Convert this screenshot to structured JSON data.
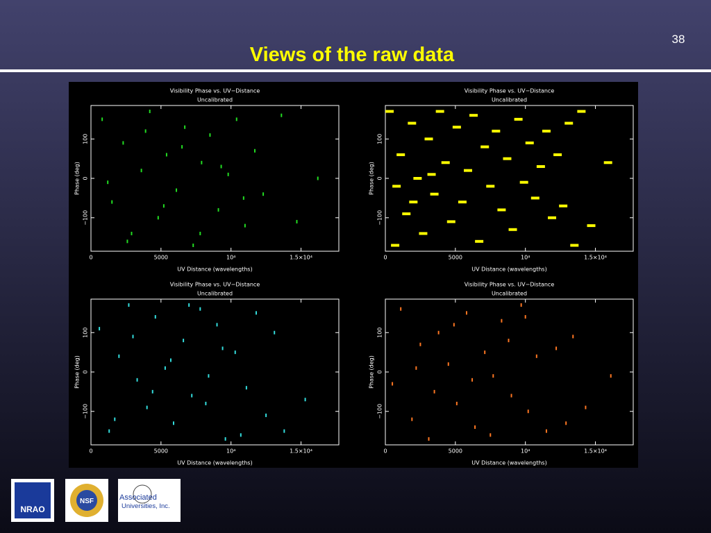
{
  "slide_number": "38",
  "title": "Views of the raw data",
  "logos": [
    "NRAO",
    "NSF",
    "Associated",
    "Universities, Inc."
  ],
  "chart_data": [
    {
      "type": "scatter",
      "title": "Visibility Phase vs. UV−Distance",
      "subtitle": "Uncalibrated",
      "xlabel": "UV Distance (wavelengths)",
      "ylabel": "Phase (deg)",
      "color": "#22dd22",
      "xlim": [
        0,
        17700
      ],
      "ylim": [
        -185,
        185
      ],
      "xticks": [
        0,
        5000,
        {
          "value": 10000,
          "label": "10⁴"
        },
        {
          "value": 15000,
          "label": "1.5×10⁴"
        }
      ],
      "yticks": [
        {
          "value": -100,
          "label": "−100"
        },
        0,
        100
      ],
      "x": [
        800,
        1500,
        2300,
        2900,
        3600,
        4200,
        4800,
        5400,
        6100,
        6700,
        7300,
        7900,
        8500,
        9100,
        9800,
        10400,
        11000,
        11700,
        12300,
        13600,
        14700,
        1200,
        2600,
        3900,
        5200,
        6500,
        7800,
        9300,
        10900,
        16200
      ],
      "y": [
        150,
        -60,
        90,
        -140,
        20,
        170,
        -100,
        60,
        -30,
        130,
        -170,
        40,
        110,
        -80,
        10,
        150,
        -120,
        70,
        -40,
        160,
        -110,
        -10,
        -160,
        120,
        -70,
        80,
        -140,
        30,
        -50,
        0
      ]
    },
    {
      "type": "scatter",
      "title": "Visibility Phase vs. UV−Distance",
      "subtitle": "Uncalibrated",
      "xlabel": "UV Distance (wavelengths)",
      "ylabel": "Phase (deg)",
      "color": "#ffff00",
      "xlim": [
        0,
        17700
      ],
      "ylim": [
        -185,
        185
      ],
      "xticks": [
        0,
        5000,
        {
          "value": 10000,
          "label": "10⁴"
        },
        {
          "value": 15000,
          "label": "1.5×10⁴"
        }
      ],
      "yticks": [
        {
          "value": -100,
          "label": "−100"
        },
        0,
        100
      ],
      "x": [
        300,
        700,
        1100,
        1500,
        1900,
        2300,
        2700,
        3100,
        3500,
        3900,
        4300,
        4700,
        5100,
        5500,
        5900,
        6300,
        6700,
        7100,
        7500,
        7900,
        8300,
        8700,
        9100,
        9500,
        9900,
        10300,
        10700,
        11100,
        11500,
        11900,
        12300,
        12700,
        13100,
        13500,
        14000,
        14700,
        15900,
        800,
        2000,
        3300
      ],
      "y": [
        170,
        -170,
        60,
        -90,
        140,
        0,
        -140,
        100,
        -40,
        170,
        40,
        -110,
        130,
        -60,
        20,
        160,
        -160,
        80,
        -20,
        120,
        -80,
        50,
        -130,
        150,
        -10,
        90,
        -50,
        30,
        120,
        -100,
        60,
        -70,
        140,
        -170,
        170,
        -120,
        40,
        -20,
        -60,
        10
      ]
    },
    {
      "type": "scatter",
      "title": "Visibility Phase vs. UV−Distance",
      "subtitle": "Uncalibrated",
      "xlabel": "UV Distance (wavelengths)",
      "ylabel": "Phase (deg)",
      "color": "#33dddd",
      "xlim": [
        0,
        17700
      ],
      "ylim": [
        -185,
        185
      ],
      "xticks": [
        0,
        5000,
        {
          "value": 10000,
          "label": "10⁴"
        },
        {
          "value": 15000,
          "label": "1.5×10⁴"
        }
      ],
      "yticks": [
        {
          "value": -100,
          "label": "−100"
        },
        0,
        100
      ],
      "x": [
        600,
        1300,
        2000,
        2700,
        3300,
        4000,
        4600,
        5300,
        5900,
        6600,
        7200,
        7800,
        8400,
        9000,
        9600,
        10300,
        11100,
        11800,
        12500,
        13800,
        15300,
        1700,
        3000,
        4400,
        5700,
        7000,
        8200,
        9400,
        10700,
        13100
      ],
      "y": [
        110,
        -150,
        40,
        170,
        -20,
        -90,
        140,
        10,
        -130,
        80,
        -60,
        160,
        -10,
        120,
        -170,
        50,
        -40,
        150,
        -110,
        -150,
        -70,
        -120,
        90,
        -50,
        30,
        170,
        -80,
        60,
        -160,
        100
      ]
    },
    {
      "type": "scatter",
      "title": "Visibility Phase vs. UV−Distance",
      "subtitle": "Uncalibrated",
      "xlabel": "UV Distance (wavelengths)",
      "ylabel": "Phase (deg)",
      "color": "#ff7722",
      "xlim": [
        0,
        17700
      ],
      "ylim": [
        -185,
        185
      ],
      "xticks": [
        0,
        5000,
        {
          "value": 10000,
          "label": "10⁴"
        },
        {
          "value": 15000,
          "label": "1.5×10⁴"
        }
      ],
      "yticks": [
        {
          "value": -100,
          "label": "−100"
        },
        0,
        100
      ],
      "x": [
        500,
        1100,
        1900,
        2500,
        3100,
        3800,
        4500,
        5100,
        5800,
        6400,
        7100,
        7700,
        8300,
        9000,
        9700,
        10200,
        10800,
        11500,
        12200,
        13400,
        14300,
        16100,
        2200,
        3500,
        4900,
        6200,
        7500,
        8800,
        10000,
        12900
      ],
      "y": [
        -30,
        160,
        -120,
        70,
        -170,
        100,
        20,
        -80,
        150,
        -140,
        50,
        -10,
        130,
        -60,
        170,
        -100,
        40,
        -150,
        60,
        90,
        -90,
        -10,
        10,
        -50,
        120,
        -20,
        -160,
        80,
        140,
        -130
      ]
    }
  ]
}
